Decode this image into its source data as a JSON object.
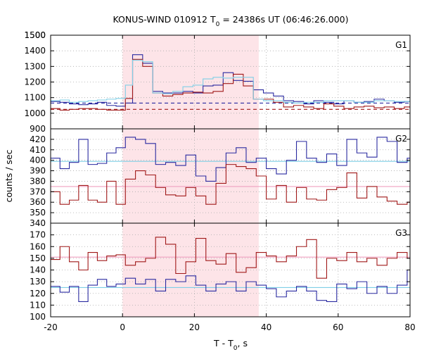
{
  "chart_data": {
    "type": "line",
    "title_main": "KONUS-WIND 010912 T",
    "title_sub": "0",
    "title_rest": " = 24386s UT (06:46:26.000)",
    "xlabel_main": "T - T",
    "xlabel_sub": "0",
    "xlabel_rest": ", s",
    "ylabel": "counts / sec",
    "xlim": [
      -20,
      80
    ],
    "x_ticks": [
      -20,
      0,
      20,
      40,
      60,
      80
    ],
    "shaded_interval": [
      0,
      37.9
    ],
    "colors": {
      "blue": "#2a2aa0",
      "red": "#a01818",
      "light_blue": "#7fcfe6",
      "pink": "#f0a0c0",
      "shade": "#fde4e8",
      "grid": "#aaaaaa"
    },
    "panels": [
      {
        "label": "G1",
        "ylim": [
          900,
          1500
        ],
        "y_ticks": [
          900,
          1000,
          1100,
          1200,
          1300,
          1400,
          1500
        ],
        "bin_edges": [
          -20,
          -17.4,
          -14.8,
          -12.2,
          -9.6,
          -7,
          -4.4,
          -1.8,
          0.8,
          2.8,
          5.6,
          8.4,
          11.2,
          14,
          16.8,
          19.6,
          22.4,
          25.2,
          28,
          30.8,
          33.6,
          36.4,
          39.2,
          42,
          44.8,
          47.6,
          50.4,
          53.2,
          56,
          58.8,
          61.6,
          64.4,
          67.2,
          70,
          72.8,
          75.6,
          78.4,
          80
        ],
        "series": [
          {
            "name": "blue",
            "values": [
              1075,
              1070,
              1060,
              1055,
              1060,
              1070,
              1050,
              1045,
              1065,
              1375,
              1320,
              1140,
              1130,
              1130,
              1140,
              1130,
              1175,
              1180,
              1260,
              1210,
              1205,
              1150,
              1130,
              1110,
              1080,
              1075,
              1060,
              1080,
              1070,
              1060,
              1080,
              1070,
              1075,
              1090,
              1080,
              1070,
              1075
            ]
          },
          {
            "name": "red",
            "values": [
              1030,
              1020,
              1025,
              1030,
              1030,
              1025,
              1020,
              1020,
              1095,
              1345,
              1300,
              1130,
              1110,
              1120,
              1130,
              1135,
              1130,
              1140,
              1190,
              1250,
              1175,
              1090,
              1090,
              1070,
              1040,
              1050,
              1040,
              1030,
              1060,
              1045,
              1030,
              1040,
              1045,
              1035,
              1040,
              1030,
              1040
            ]
          },
          {
            "name": "light_blue",
            "values": [
              1080,
              1085,
              1070,
              1075,
              1080,
              1085,
              1090,
              1095,
              1180,
              1340,
              1330,
              1130,
              1125,
              1140,
              1170,
              1180,
              1220,
              1230,
              1225,
              1230,
              1230,
              1090,
              1080,
              1080,
              1070,
              1065,
              1070,
              1070,
              1080,
              1080,
              1080,
              1070,
              1070,
              1080,
              1080,
              1075,
              1075
            ]
          }
        ],
        "reference_lines": [
          {
            "color": "blue",
            "value": 1065,
            "style": "dashed"
          },
          {
            "color": "red",
            "value": 1025,
            "style": "dashed"
          }
        ]
      },
      {
        "label": "G2",
        "ylim": [
          340,
          430
        ],
        "y_ticks": [
          340,
          350,
          360,
          370,
          380,
          390,
          400,
          410,
          420
        ],
        "bin_edges": [
          -20,
          -17.4,
          -14.8,
          -12.2,
          -9.6,
          -7,
          -4.4,
          -1.8,
          0.8,
          3.6,
          6.4,
          9.2,
          12,
          14.8,
          17.6,
          20.4,
          23.2,
          26,
          28.8,
          31.6,
          34.4,
          37.2,
          40,
          42.8,
          45.6,
          48.4,
          51.2,
          54,
          56.8,
          59.6,
          62.4,
          65.2,
          68,
          70.8,
          73.6,
          76.4,
          79.2,
          80
        ],
        "series": [
          {
            "name": "blue",
            "values": [
              402,
              392,
              398,
              420,
              396,
              397,
              407,
              412,
              422,
              420,
              416,
              396,
              398,
              395,
              405,
              385,
              380,
              393,
              407,
              412,
              398,
              402,
              392,
              387,
              400,
              418,
              402,
              398,
              406,
              395,
              420,
              407,
              403,
              422,
              418,
              398,
              402
            ]
          },
          {
            "name": "red",
            "values": [
              370,
              358,
              362,
              376,
              362,
              360,
              380,
              358,
              382,
              390,
              386,
              374,
              367,
              366,
              374,
              366,
              358,
              378,
              396,
              394,
              392,
              385,
              363,
              376,
              360,
              374,
              363,
              362,
              372,
              374,
              388,
              364,
              375,
              365,
              361,
              358,
              360
            ]
          }
        ],
        "reference_lines": [
          {
            "color": "light_blue",
            "value": 399,
            "style": "solid"
          },
          {
            "color": "pink",
            "value": 375,
            "style": "solid"
          }
        ]
      },
      {
        "label": "G3",
        "ylim": [
          100,
          180
        ],
        "y_ticks": [
          100,
          110,
          120,
          130,
          140,
          150,
          160,
          170
        ],
        "bin_edges": [
          -20,
          -17.4,
          -14.8,
          -12.2,
          -9.6,
          -7,
          -4.4,
          -1.8,
          0.8,
          3.6,
          6.4,
          9.2,
          12,
          14.8,
          17.6,
          20.4,
          23.2,
          26,
          28.8,
          31.6,
          34.4,
          37.2,
          40,
          42.8,
          45.6,
          48.4,
          51.2,
          54,
          56.8,
          59.6,
          62.4,
          65.2,
          68,
          70.8,
          73.6,
          76.4,
          79.2,
          80
        ],
        "series": [
          {
            "name": "blue",
            "values": [
              126,
              121,
              126,
              113,
              127,
              132,
              126,
              128,
              133,
              128,
              132,
              122,
              132,
              130,
              135,
              127,
              122,
              128,
              130,
              122,
              130,
              127,
              124,
              117,
              122,
              126,
              122,
              114,
              113,
              128,
              124,
              130,
              120,
              126,
              120,
              127,
              140
            ]
          },
          {
            "name": "red",
            "values": [
              149,
              160,
              147,
              140,
              155,
              148,
              152,
              153,
              144,
              147,
              150,
              168,
              162,
              137,
              147,
              167,
              148,
              145,
              154,
              138,
              142,
              155,
              152,
              147,
              152,
              160,
              166,
              133,
              150,
              148,
              155,
              147,
              150,
              144,
              150,
              155,
              150
            ]
          }
        ],
        "reference_lines": [
          {
            "color": "light_blue",
            "value": 125,
            "style": "solid"
          },
          {
            "color": "pink",
            "value": 151,
            "style": "solid"
          }
        ]
      }
    ]
  }
}
